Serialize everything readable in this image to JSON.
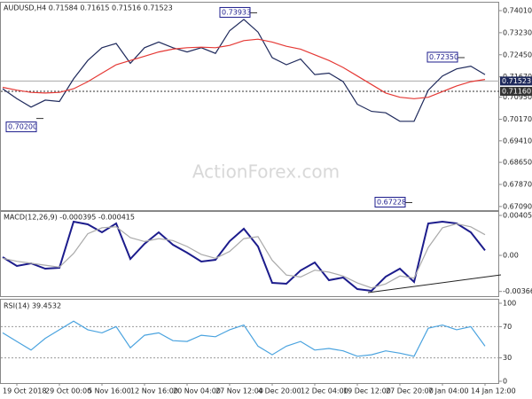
{
  "chart_data": [
    {
      "type": "line",
      "title": "AUDUSD,H4  0.71584 0.71615 0.71516 0.71523",
      "watermark": "ActionForex.com",
      "categories": [
        null,
        "19 Oct 2018",
        null,
        null,
        "29 Oct 00:00",
        null,
        null,
        "5 Nov 16:00",
        null,
        null,
        "12 Nov 16:00",
        null,
        null,
        "20 Nov 04:00",
        null,
        null,
        "27 Nov 12:00",
        null,
        null,
        "4 Dec 20:00",
        null,
        null,
        "12 Dec 04:00",
        null,
        null,
        "19 Dec 12:00",
        null,
        null,
        "27 Dec 20:00",
        null,
        null,
        "7 Jan 04:00",
        null,
        null,
        "14 Jan 12:00"
      ],
      "ylim": [
        0.6693,
        0.7426
      ],
      "yticks": [
        {
          "value": 0.7401,
          "label": "0.74010"
        },
        {
          "value": 0.7323,
          "label": "0.73230"
        },
        {
          "value": 0.7245,
          "label": "0.72450"
        },
        {
          "value": 0.7167,
          "label": "0.71670"
        },
        {
          "value": 0.7095,
          "label": "0.70950"
        },
        {
          "value": 0.7017,
          "label": "0.70170"
        },
        {
          "value": 0.6941,
          "label": "0.69410"
        },
        {
          "value": 0.6865,
          "label": "0.68650"
        },
        {
          "value": 0.6787,
          "label": "0.67870"
        },
        {
          "value": 0.6709,
          "label": "0.67090"
        }
      ],
      "series": [
        {
          "color": "#1f2a5c",
          "values": [
            0.7125,
            0.709,
            0.706,
            0.7085,
            0.708,
            0.716,
            0.7225,
            0.727,
            0.7285,
            0.7215,
            0.727,
            0.729,
            0.727,
            0.7255,
            0.727,
            0.725,
            0.733,
            0.737,
            0.7325,
            0.7235,
            0.721,
            0.723,
            0.7175,
            0.718,
            0.715,
            0.707,
            0.7045,
            0.704,
            0.701,
            0.701,
            0.712,
            0.717,
            0.7195,
            0.7205,
            0.7175
          ]
        },
        {
          "color": "#e53935",
          "values": [
            0.713,
            0.712,
            0.7112,
            0.711,
            0.7112,
            0.7125,
            0.715,
            0.718,
            0.721,
            0.7225,
            0.724,
            0.7255,
            0.7265,
            0.727,
            0.7272,
            0.727,
            0.7278,
            0.7295,
            0.73,
            0.729,
            0.7275,
            0.7265,
            0.7245,
            0.7225,
            0.72,
            0.717,
            0.714,
            0.711,
            0.7095,
            0.709,
            0.7095,
            0.7115,
            0.7135,
            0.715,
            0.7158
          ]
        }
      ],
      "annotations": [
        {
          "value": 0.73933,
          "label": "0.73933"
        },
        {
          "value": 0.702,
          "label": "0.70200"
        },
        {
          "value": 0.7235,
          "label": "0.72350"
        },
        {
          "value": 0.67228,
          "label": "0.67228"
        }
      ],
      "level_line": {
        "value": 0.7116,
        "label": "0.71160"
      },
      "last_price": {
        "value": 0.71523,
        "label": "0.71523"
      }
    },
    {
      "type": "line",
      "title": "MACD(12,26,9) -0.000395 -0.000415",
      "ylim": [
        -0.00423,
        0.0045
      ],
      "yticks": [
        0.004055,
        {
          "value": 0,
          "label": "0.00"
        },
        -0.003662
      ],
      "series": [
        {
          "color": "#1c1c8c",
          "values": [
            -0.00018,
            -0.00108,
            -0.00081,
            -0.00135,
            -0.00126,
            0.00342,
            0.00315,
            0.00234,
            0.00324,
            -0.00036,
            0.00117,
            0.00234,
            0.00108,
            0.00027,
            -0.00063,
            -0.00045,
            0.00144,
            0.0027,
            0.0009,
            -0.00279,
            -0.00288,
            -0.00153,
            -0.00072,
            -0.00252,
            -0.00225,
            -0.00342,
            -0.0036,
            -0.00216,
            -0.00135,
            -0.0027,
            0.00324,
            0.00342,
            0.00324,
            0.00234,
            0.0005
          ]
        },
        {
          "color": "#aaaaaa",
          "values": [
            -0.0003,
            -0.0006,
            -0.0008,
            -0.001,
            -0.0012,
            0.0002,
            0.0022,
            0.0028,
            0.0029,
            0.0018,
            0.0014,
            0.0017,
            0.0015,
            0.0009,
            0.0001,
            -0.0003,
            0.0004,
            0.0017,
            0.0019,
            -0.0005,
            -0.002,
            -0.0022,
            -0.0015,
            -0.0017,
            -0.0021,
            -0.0028,
            -0.0033,
            -0.0029,
            -0.0021,
            -0.0023,
            0.0008,
            0.0028,
            0.0032,
            0.0029,
            0.0021
          ]
        }
      ]
    },
    {
      "type": "line",
      "title": "RSI(14) 39.4532",
      "ylim": [
        0,
        100
      ],
      "yticks": [
        100,
        70,
        30,
        0
      ],
      "levels": [
        70,
        30
      ],
      "series": [
        {
          "color": "#4aa3df",
          "values": [
            62,
            51,
            40,
            55,
            66,
            77,
            66,
            62,
            70,
            43,
            59,
            62,
            52,
            51,
            59,
            57,
            66,
            72,
            45,
            34,
            45,
            51,
            40,
            42,
            39,
            32,
            34,
            39,
            36,
            32,
            68,
            72,
            66,
            70,
            45
          ]
        }
      ]
    }
  ]
}
